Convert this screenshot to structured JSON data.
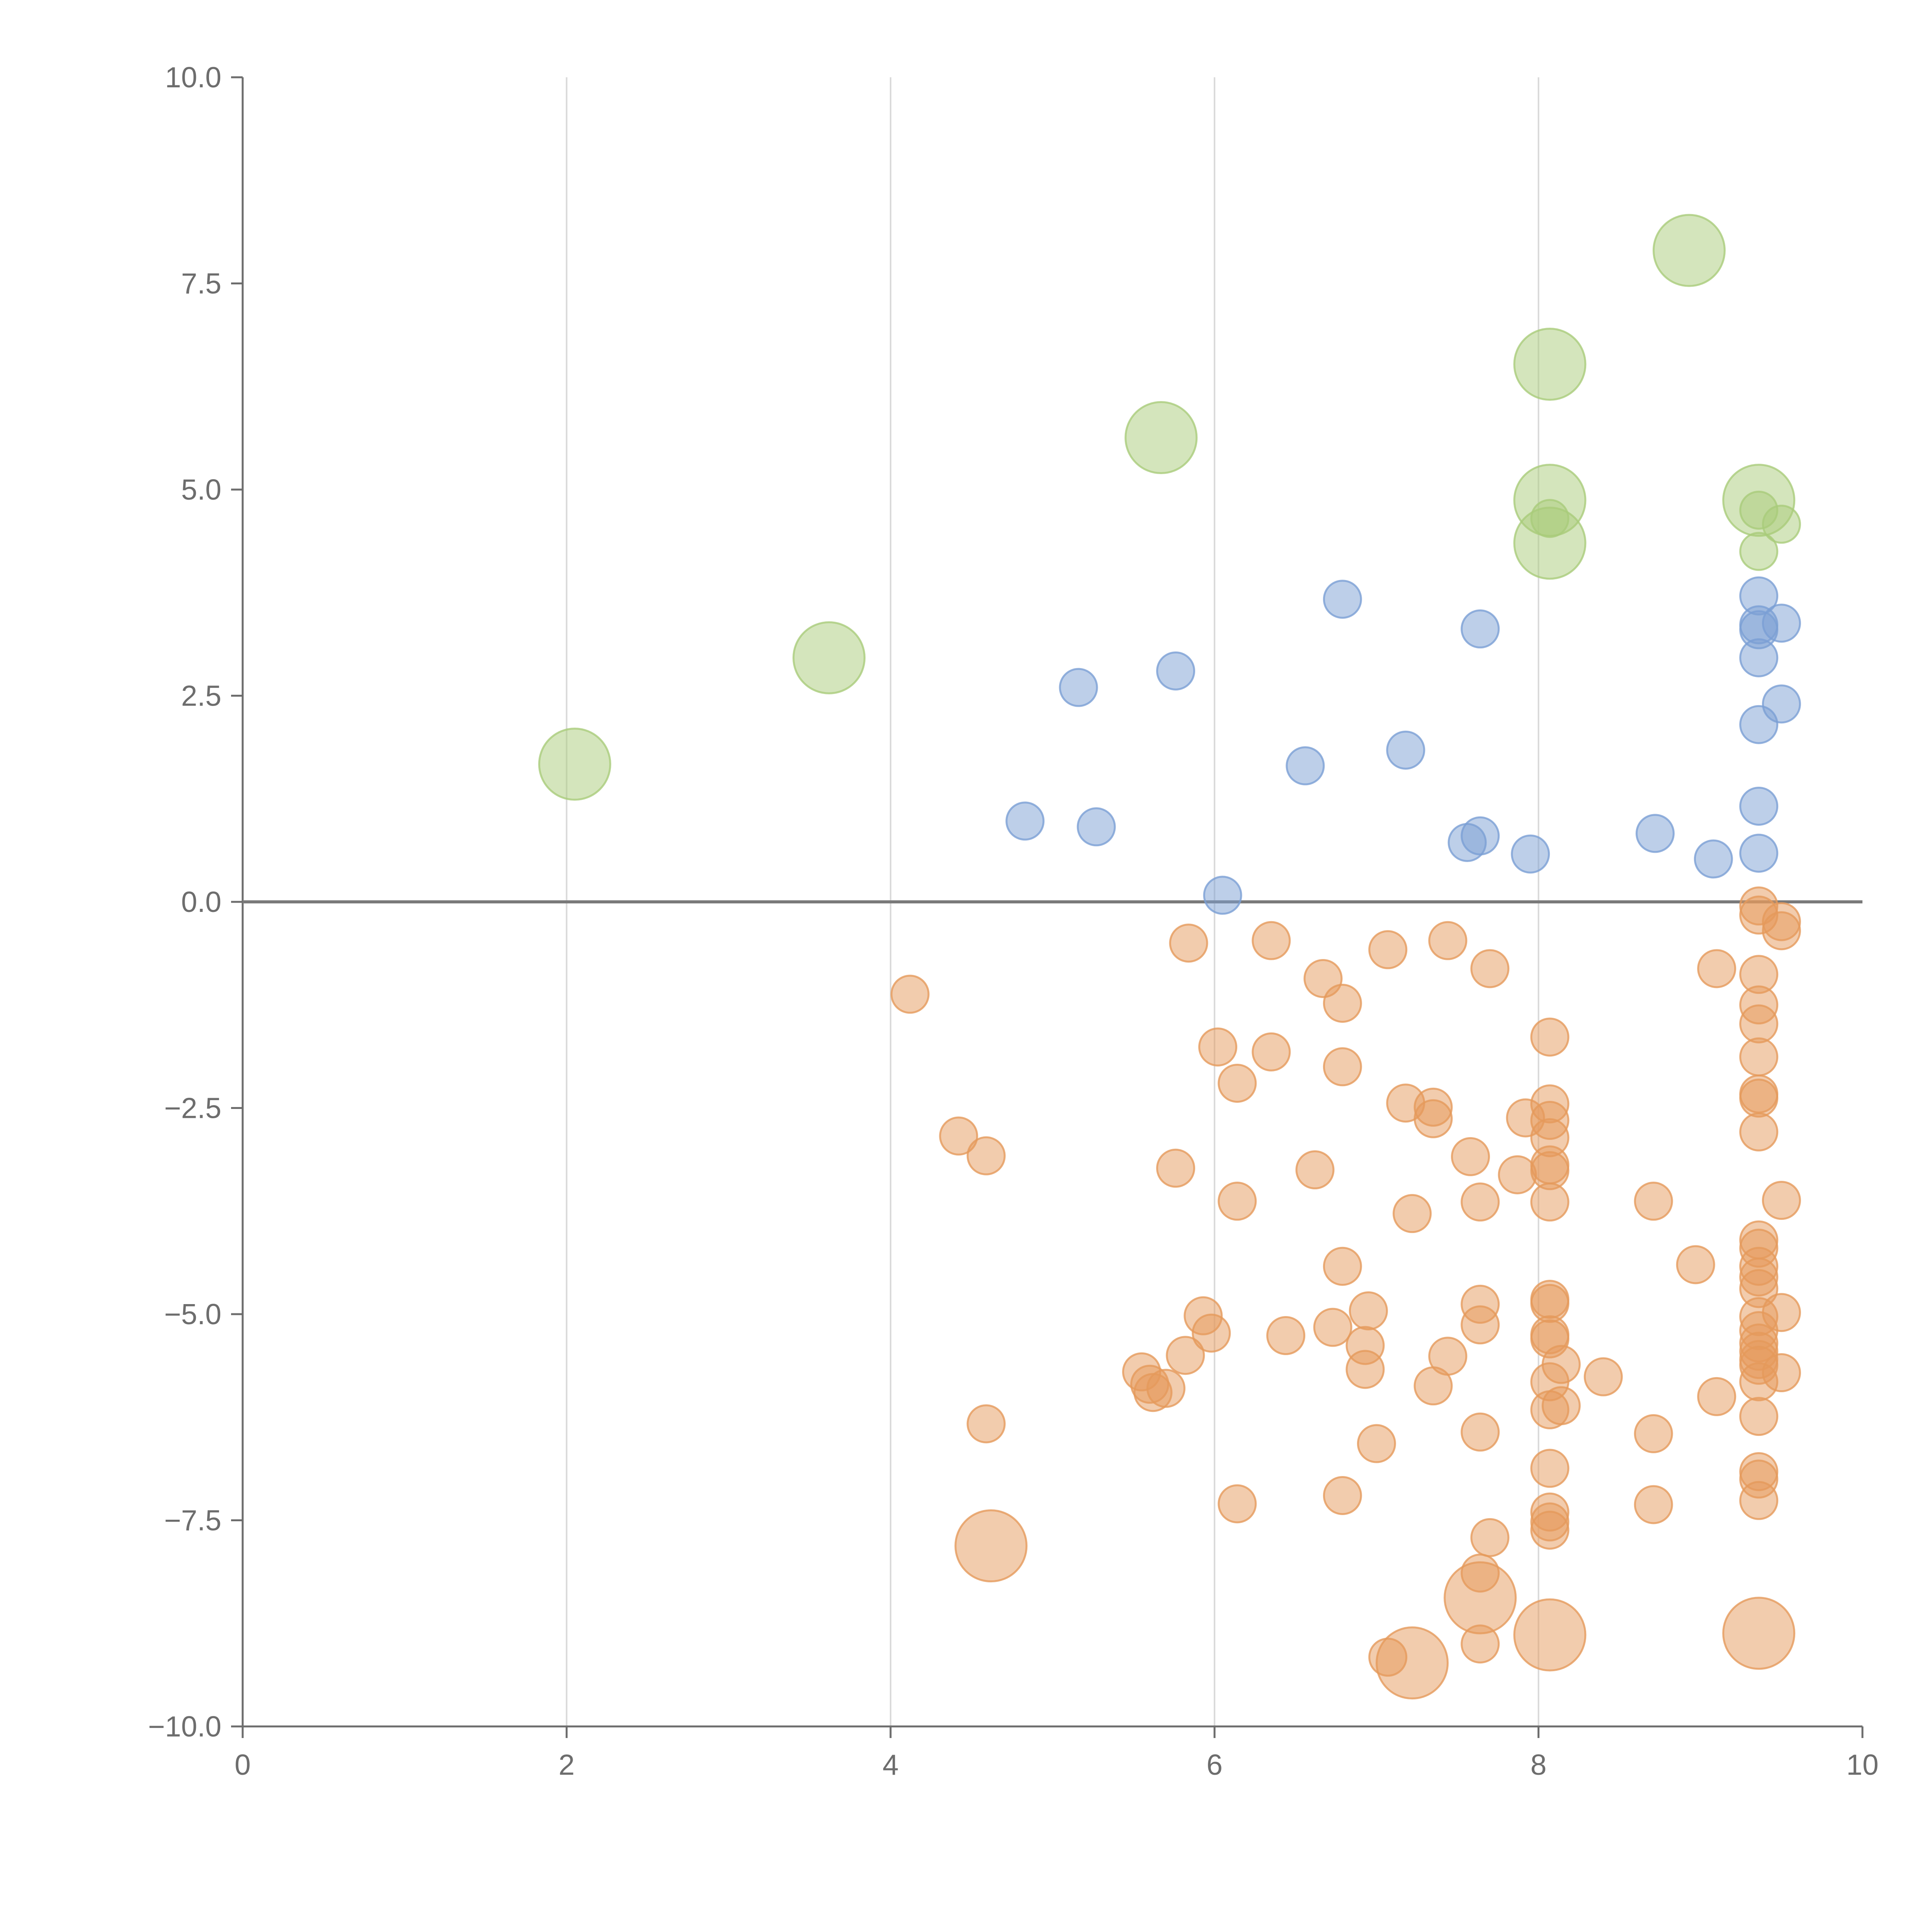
{
  "chart_data": {
    "type": "scatter",
    "title": "",
    "xlabel": "",
    "ylabel": "",
    "xlim": [
      0,
      10
    ],
    "ylim": [
      -10,
      10
    ],
    "grid": {
      "x": true,
      "y": false
    },
    "zero_line": true,
    "x_ticks": [
      0,
      2,
      4,
      6,
      8,
      10
    ],
    "x_tick_labels": [
      "0",
      "2",
      "4",
      "6",
      "8",
      "10"
    ],
    "y_ticks": [
      10,
      7.5,
      5,
      2.5,
      0,
      -2.5,
      -5,
      -7.5,
      -10
    ],
    "y_tick_labels": [
      "10.0",
      "7.5",
      "5.0",
      "2.5",
      "0.0",
      "−2.5",
      "−5.0",
      "−7.5",
      "−10.0"
    ],
    "colors": {
      "green": "#a9cc7a",
      "blue": "#7b9fd4",
      "orange": "#e59a5b",
      "axis": "#6d6d6d",
      "grid": "#d9d9d9"
    },
    "series": [
      {
        "name": "green",
        "size": "large",
        "points": [
          {
            "x": 2.05,
            "y": 1.67
          },
          {
            "x": 3.62,
            "y": 2.96
          },
          {
            "x": 5.67,
            "y": 5.63
          },
          {
            "x": 8.07,
            "y": 6.52
          },
          {
            "x": 8.93,
            "y": 7.9
          },
          {
            "x": 8.07,
            "y": 4.87
          },
          {
            "x": 8.07,
            "y": 4.35
          },
          {
            "x": 9.36,
            "y": 4.87
          }
        ]
      },
      {
        "name": "green",
        "size": "small",
        "points": [
          {
            "x": 8.07,
            "y": 4.65
          },
          {
            "x": 9.36,
            "y": 4.75
          },
          {
            "x": 9.5,
            "y": 4.58
          },
          {
            "x": 9.36,
            "y": 4.25
          }
        ]
      },
      {
        "name": "blue",
        "size": "small",
        "points": [
          {
            "x": 4.83,
            "y": 0.98
          },
          {
            "x": 5.16,
            "y": 2.6
          },
          {
            "x": 5.27,
            "y": 0.91
          },
          {
            "x": 5.76,
            "y": 2.8
          },
          {
            "x": 6.05,
            "y": 0.08
          },
          {
            "x": 6.56,
            "y": 1.65
          },
          {
            "x": 6.79,
            "y": 3.67
          },
          {
            "x": 7.18,
            "y": 1.84
          },
          {
            "x": 7.56,
            "y": 0.72
          },
          {
            "x": 7.64,
            "y": 0.8
          },
          {
            "x": 7.64,
            "y": 3.31
          },
          {
            "x": 7.95,
            "y": 0.58
          },
          {
            "x": 8.72,
            "y": 0.83
          },
          {
            "x": 9.08,
            "y": 0.52
          },
          {
            "x": 9.36,
            "y": 3.71
          },
          {
            "x": 9.36,
            "y": 3.36
          },
          {
            "x": 9.36,
            "y": 3.3
          },
          {
            "x": 9.36,
            "y": 2.96
          },
          {
            "x": 9.5,
            "y": 3.38
          },
          {
            "x": 9.5,
            "y": 2.4
          },
          {
            "x": 9.36,
            "y": 2.15
          },
          {
            "x": 9.36,
            "y": 1.16
          },
          {
            "x": 9.36,
            "y": 0.59
          }
        ]
      },
      {
        "name": "orange",
        "size": "small",
        "points": [
          {
            "x": 4.12,
            "y": -1.12
          },
          {
            "x": 4.42,
            "y": -2.84
          },
          {
            "x": 4.59,
            "y": -3.08
          },
          {
            "x": 4.59,
            "y": -6.33
          },
          {
            "x": 5.55,
            "y": -5.7
          },
          {
            "x": 5.6,
            "y": -5.85
          },
          {
            "x": 5.62,
            "y": -5.95
          },
          {
            "x": 5.7,
            "y": -5.9
          },
          {
            "x": 5.76,
            "y": -3.23
          },
          {
            "x": 5.82,
            "y": -5.5
          },
          {
            "x": 5.84,
            "y": -0.5
          },
          {
            "x": 5.93,
            "y": -5.02
          },
          {
            "x": 5.98,
            "y": -5.23
          },
          {
            "x": 6.02,
            "y": -1.76
          },
          {
            "x": 6.14,
            "y": -2.2
          },
          {
            "x": 6.14,
            "y": -3.63
          },
          {
            "x": 6.14,
            "y": -7.3
          },
          {
            "x": 6.35,
            "y": -0.47
          },
          {
            "x": 6.35,
            "y": -1.82
          },
          {
            "x": 6.44,
            "y": -5.26
          },
          {
            "x": 6.62,
            "y": -3.25
          },
          {
            "x": 6.67,
            "y": -0.93
          },
          {
            "x": 6.73,
            "y": -5.16
          },
          {
            "x": 6.79,
            "y": -1.23
          },
          {
            "x": 6.79,
            "y": -2.0
          },
          {
            "x": 6.79,
            "y": -4.42
          },
          {
            "x": 6.79,
            "y": -7.2
          },
          {
            "x": 6.93,
            "y": -5.38
          },
          {
            "x": 6.93,
            "y": -5.67
          },
          {
            "x": 6.95,
            "y": -4.96
          },
          {
            "x": 7.0,
            "y": -6.57
          },
          {
            "x": 7.07,
            "y": -0.58
          },
          {
            "x": 7.07,
            "y": -9.16
          },
          {
            "x": 7.18,
            "y": -2.44
          },
          {
            "x": 7.22,
            "y": -3.78
          },
          {
            "x": 7.35,
            "y": -2.49
          },
          {
            "x": 7.35,
            "y": -2.63
          },
          {
            "x": 7.35,
            "y": -5.87
          },
          {
            "x": 7.44,
            "y": -0.47
          },
          {
            "x": 7.44,
            "y": -5.51
          },
          {
            "x": 7.58,
            "y": -3.09
          },
          {
            "x": 7.64,
            "y": -3.64
          },
          {
            "x": 7.64,
            "y": -4.88
          },
          {
            "x": 7.64,
            "y": -5.13
          },
          {
            "x": 7.64,
            "y": -6.43
          },
          {
            "x": 7.64,
            "y": -8.14
          },
          {
            "x": 7.64,
            "y": -9.0
          },
          {
            "x": 7.7,
            "y": -0.81
          },
          {
            "x": 7.7,
            "y": -7.71
          },
          {
            "x": 7.87,
            "y": -3.31
          },
          {
            "x": 7.92,
            "y": -2.62
          },
          {
            "x": 8.07,
            "y": -1.64
          },
          {
            "x": 8.07,
            "y": -2.45
          },
          {
            "x": 8.07,
            "y": -2.65
          },
          {
            "x": 8.07,
            "y": -2.86
          },
          {
            "x": 8.07,
            "y": -3.19
          },
          {
            "x": 8.07,
            "y": -3.26
          },
          {
            "x": 8.07,
            "y": -3.64
          },
          {
            "x": 8.07,
            "y": -4.82
          },
          {
            "x": 8.07,
            "y": -4.87
          },
          {
            "x": 8.07,
            "y": -5.25
          },
          {
            "x": 8.07,
            "y": -5.3
          },
          {
            "x": 8.07,
            "y": -5.82
          },
          {
            "x": 8.07,
            "y": -6.16
          },
          {
            "x": 8.07,
            "y": -6.87
          },
          {
            "x": 8.07,
            "y": -7.4
          },
          {
            "x": 8.07,
            "y": -7.52
          },
          {
            "x": 8.07,
            "y": -7.62
          },
          {
            "x": 8.14,
            "y": -5.61
          },
          {
            "x": 8.14,
            "y": -6.11
          },
          {
            "x": 8.4,
            "y": -5.76
          },
          {
            "x": 8.71,
            "y": -3.63
          },
          {
            "x": 8.71,
            "y": -6.45
          },
          {
            "x": 8.71,
            "y": -7.31
          },
          {
            "x": 8.97,
            "y": -4.4
          },
          {
            "x": 9.1,
            "y": -0.81
          },
          {
            "x": 9.1,
            "y": -6.0
          },
          {
            "x": 9.36,
            "y": -0.05
          },
          {
            "x": 9.36,
            "y": -0.16
          },
          {
            "x": 9.36,
            "y": -0.88
          },
          {
            "x": 9.36,
            "y": -1.25
          },
          {
            "x": 9.36,
            "y": -1.48
          },
          {
            "x": 9.36,
            "y": -1.88
          },
          {
            "x": 9.36,
            "y": -2.33
          },
          {
            "x": 9.36,
            "y": -2.38
          },
          {
            "x": 9.36,
            "y": -2.79
          },
          {
            "x": 9.36,
            "y": -4.1
          },
          {
            "x": 9.36,
            "y": -4.2
          },
          {
            "x": 9.36,
            "y": -4.42
          },
          {
            "x": 9.36,
            "y": -4.55
          },
          {
            "x": 9.36,
            "y": -4.69
          },
          {
            "x": 9.36,
            "y": -5.03
          },
          {
            "x": 9.36,
            "y": -5.2
          },
          {
            "x": 9.36,
            "y": -5.35
          },
          {
            "x": 9.36,
            "y": -5.45
          },
          {
            "x": 9.36,
            "y": -5.55
          },
          {
            "x": 9.36,
            "y": -5.62
          },
          {
            "x": 9.36,
            "y": -5.82
          },
          {
            "x": 9.36,
            "y": -6.24
          },
          {
            "x": 9.36,
            "y": -6.91
          },
          {
            "x": 9.36,
            "y": -7.0
          },
          {
            "x": 9.36,
            "y": -7.26
          },
          {
            "x": 9.5,
            "y": -0.24
          },
          {
            "x": 9.5,
            "y": -0.35
          },
          {
            "x": 9.5,
            "y": -3.62
          },
          {
            "x": 9.5,
            "y": -4.98
          },
          {
            "x": 9.5,
            "y": -5.71
          }
        ]
      },
      {
        "name": "orange",
        "size": "large",
        "points": [
          {
            "x": 4.62,
            "y": -7.81
          },
          {
            "x": 7.22,
            "y": -9.23
          },
          {
            "x": 7.64,
            "y": -8.44
          },
          {
            "x": 8.07,
            "y": -8.89
          },
          {
            "x": 9.36,
            "y": -8.87
          }
        ]
      }
    ]
  }
}
